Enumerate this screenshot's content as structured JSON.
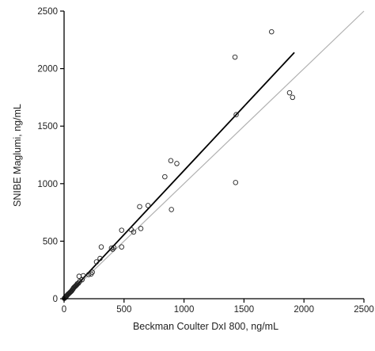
{
  "chart_data": {
    "type": "scatter",
    "title": "",
    "xlabel": "Beckman Coulter DxI 800, ng/mL",
    "ylabel": "SNIBE Maglumi, ng/mL",
    "xlim": [
      0,
      2500
    ],
    "ylim": [
      0,
      2500
    ],
    "xticks": [
      0,
      500,
      1000,
      1500,
      2000,
      2500
    ],
    "yticks": [
      0,
      500,
      1000,
      1500,
      2000,
      2500
    ],
    "grid": false,
    "legend": false,
    "colors": {
      "points": "#222222",
      "regression": "#000000",
      "identity": "#b0b0b0",
      "axis": "#000000"
    },
    "points": [
      {
        "x": 2,
        "y": 3
      },
      {
        "x": 5,
        "y": 6
      },
      {
        "x": 8,
        "y": 10
      },
      {
        "x": 12,
        "y": 14
      },
      {
        "x": 15,
        "y": 20
      },
      {
        "x": 20,
        "y": 22
      },
      {
        "x": 25,
        "y": 30
      },
      {
        "x": 30,
        "y": 35
      },
      {
        "x": 35,
        "y": 40
      },
      {
        "x": 40,
        "y": 45
      },
      {
        "x": 45,
        "y": 50
      },
      {
        "x": 50,
        "y": 55
      },
      {
        "x": 55,
        "y": 60
      },
      {
        "x": 60,
        "y": 65
      },
      {
        "x": 65,
        "y": 70
      },
      {
        "x": 70,
        "y": 80
      },
      {
        "x": 75,
        "y": 85
      },
      {
        "x": 80,
        "y": 95
      },
      {
        "x": 85,
        "y": 100
      },
      {
        "x": 90,
        "y": 105
      },
      {
        "x": 95,
        "y": 110
      },
      {
        "x": 100,
        "y": 115
      },
      {
        "x": 105,
        "y": 120
      },
      {
        "x": 110,
        "y": 130
      },
      {
        "x": 120,
        "y": 135
      },
      {
        "x": 130,
        "y": 150
      },
      {
        "x": 125,
        "y": 195
      },
      {
        "x": 150,
        "y": 165
      },
      {
        "x": 160,
        "y": 200
      },
      {
        "x": 205,
        "y": 210
      },
      {
        "x": 225,
        "y": 215
      },
      {
        "x": 235,
        "y": 230
      },
      {
        "x": 270,
        "y": 320
      },
      {
        "x": 300,
        "y": 350
      },
      {
        "x": 310,
        "y": 450
      },
      {
        "x": 395,
        "y": 440
      },
      {
        "x": 405,
        "y": 430
      },
      {
        "x": 415,
        "y": 445
      },
      {
        "x": 480,
        "y": 595
      },
      {
        "x": 480,
        "y": 450
      },
      {
        "x": 560,
        "y": 600
      },
      {
        "x": 580,
        "y": 580
      },
      {
        "x": 630,
        "y": 800
      },
      {
        "x": 640,
        "y": 610
      },
      {
        "x": 700,
        "y": 810
      },
      {
        "x": 840,
        "y": 1060
      },
      {
        "x": 890,
        "y": 1200
      },
      {
        "x": 895,
        "y": 775
      },
      {
        "x": 940,
        "y": 1175
      },
      {
        "x": 1425,
        "y": 2100
      },
      {
        "x": 1435,
        "y": 1600
      },
      {
        "x": 1430,
        "y": 1010
      },
      {
        "x": 1730,
        "y": 2320
      },
      {
        "x": 1880,
        "y": 1790
      },
      {
        "x": 1905,
        "y": 1750
      }
    ],
    "regression_line": {
      "x": [
        0,
        1920
      ],
      "y": [
        0,
        2140
      ]
    },
    "identity_line": {
      "x": [
        0,
        2500
      ],
      "y": [
        0,
        2500
      ]
    }
  }
}
